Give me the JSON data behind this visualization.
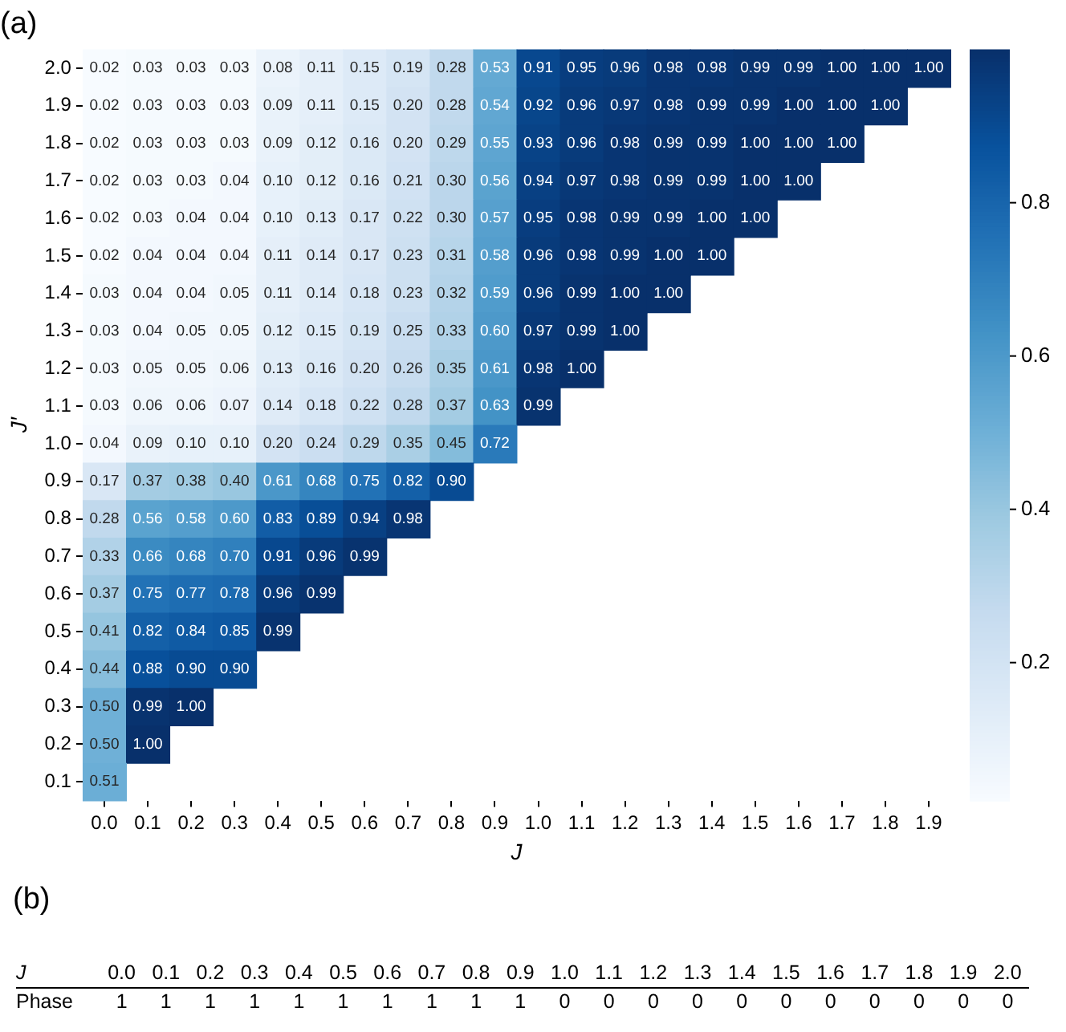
{
  "chart_data": [
    {
      "type": "heatmap",
      "title": "(a)",
      "xlabel": "J",
      "ylabel": "J′",
      "categories": [
        "0.0",
        "0.1",
        "0.2",
        "0.3",
        "0.4",
        "0.5",
        "0.6",
        "0.7",
        "0.8",
        "0.9",
        "1.0",
        "1.1",
        "1.2",
        "1.3",
        "1.4",
        "1.5",
        "1.6",
        "1.7",
        "1.8",
        "1.9"
      ],
      "y_categories": [
        "2.0",
        "1.9",
        "1.8",
        "1.7",
        "1.6",
        "1.5",
        "1.4",
        "1.3",
        "1.2",
        "1.1",
        "1.0",
        "0.9",
        "0.8",
        "0.7",
        "0.6",
        "0.5",
        "0.4",
        "0.3",
        "0.2",
        "0.1"
      ],
      "cells": [
        [
          0.02,
          0.03,
          0.03,
          0.03,
          0.08,
          0.11,
          0.15,
          0.19,
          0.28,
          0.53,
          0.91,
          0.95,
          0.96,
          0.98,
          0.98,
          0.99,
          0.99,
          1.0,
          1.0,
          1.0
        ],
        [
          0.02,
          0.03,
          0.03,
          0.03,
          0.09,
          0.11,
          0.15,
          0.2,
          0.28,
          0.54,
          0.92,
          0.96,
          0.97,
          0.98,
          0.99,
          0.99,
          1.0,
          1.0,
          1.0,
          null
        ],
        [
          0.02,
          0.03,
          0.03,
          0.03,
          0.09,
          0.12,
          0.16,
          0.2,
          0.29,
          0.55,
          0.93,
          0.96,
          0.98,
          0.99,
          0.99,
          1.0,
          1.0,
          1.0,
          null,
          null
        ],
        [
          0.02,
          0.03,
          0.03,
          0.04,
          0.1,
          0.12,
          0.16,
          0.21,
          0.3,
          0.56,
          0.94,
          0.97,
          0.98,
          0.99,
          0.99,
          1.0,
          1.0,
          null,
          null,
          null
        ],
        [
          0.02,
          0.03,
          0.04,
          0.04,
          0.1,
          0.13,
          0.17,
          0.22,
          0.3,
          0.57,
          0.95,
          0.98,
          0.99,
          0.99,
          1.0,
          1.0,
          null,
          null,
          null,
          null
        ],
        [
          0.02,
          0.04,
          0.04,
          0.04,
          0.11,
          0.14,
          0.17,
          0.23,
          0.31,
          0.58,
          0.96,
          0.98,
          0.99,
          1.0,
          1.0,
          null,
          null,
          null,
          null,
          null
        ],
        [
          0.03,
          0.04,
          0.04,
          0.05,
          0.11,
          0.14,
          0.18,
          0.23,
          0.32,
          0.59,
          0.96,
          0.99,
          1.0,
          1.0,
          null,
          null,
          null,
          null,
          null,
          null
        ],
        [
          0.03,
          0.04,
          0.05,
          0.05,
          0.12,
          0.15,
          0.19,
          0.25,
          0.33,
          0.6,
          0.97,
          0.99,
          1.0,
          null,
          null,
          null,
          null,
          null,
          null,
          null
        ],
        [
          0.03,
          0.05,
          0.05,
          0.06,
          0.13,
          0.16,
          0.2,
          0.26,
          0.35,
          0.61,
          0.98,
          1.0,
          null,
          null,
          null,
          null,
          null,
          null,
          null,
          null
        ],
        [
          0.03,
          0.06,
          0.06,
          0.07,
          0.14,
          0.18,
          0.22,
          0.28,
          0.37,
          0.63,
          0.99,
          null,
          null,
          null,
          null,
          null,
          null,
          null,
          null,
          null
        ],
        [
          0.04,
          0.09,
          0.1,
          0.1,
          0.2,
          0.24,
          0.29,
          0.35,
          0.45,
          0.72,
          null,
          null,
          null,
          null,
          null,
          null,
          null,
          null,
          null,
          null
        ],
        [
          0.17,
          0.37,
          0.38,
          0.4,
          0.61,
          0.68,
          0.75,
          0.82,
          0.9,
          null,
          null,
          null,
          null,
          null,
          null,
          null,
          null,
          null,
          null,
          null
        ],
        [
          0.28,
          0.56,
          0.58,
          0.6,
          0.83,
          0.89,
          0.94,
          0.98,
          null,
          null,
          null,
          null,
          null,
          null,
          null,
          null,
          null,
          null,
          null,
          null
        ],
        [
          0.33,
          0.66,
          0.68,
          0.7,
          0.91,
          0.96,
          0.99,
          null,
          null,
          null,
          null,
          null,
          null,
          null,
          null,
          null,
          null,
          null,
          null,
          null
        ],
        [
          0.37,
          0.75,
          0.77,
          0.78,
          0.96,
          0.99,
          null,
          null,
          null,
          null,
          null,
          null,
          null,
          null,
          null,
          null,
          null,
          null,
          null,
          null
        ],
        [
          0.41,
          0.82,
          0.84,
          0.85,
          0.99,
          null,
          null,
          null,
          null,
          null,
          null,
          null,
          null,
          null,
          null,
          null,
          null,
          null,
          null,
          null
        ],
        [
          0.44,
          0.88,
          0.9,
          0.9,
          null,
          null,
          null,
          null,
          null,
          null,
          null,
          null,
          null,
          null,
          null,
          null,
          null,
          null,
          null,
          null
        ],
        [
          0.5,
          0.99,
          1.0,
          null,
          null,
          null,
          null,
          null,
          null,
          null,
          null,
          null,
          null,
          null,
          null,
          null,
          null,
          null,
          null,
          null
        ],
        [
          0.5,
          1.0,
          null,
          null,
          null,
          null,
          null,
          null,
          null,
          null,
          null,
          null,
          null,
          null,
          null,
          null,
          null,
          null,
          null,
          null
        ],
        [
          0.51,
          null,
          null,
          null,
          null,
          null,
          null,
          null,
          null,
          null,
          null,
          null,
          null,
          null,
          null,
          null,
          null,
          null,
          null,
          null
        ]
      ],
      "cell_labels": [
        [
          "0.02",
          "0.03",
          "0.03",
          "0.03",
          "0.08",
          "0.11",
          "0.15",
          "0.19",
          "0.28",
          "0.53",
          "0.91",
          "0.95",
          "0.96",
          "0.98",
          "0.98",
          "0.99",
          "0.99",
          "1.00",
          "1.00",
          "1.00"
        ],
        [
          "0.02",
          "0.03",
          "0.03",
          "0.03",
          "0.09",
          "0.11",
          "0.15",
          "0.20",
          "0.28",
          "0.54",
          "0.92",
          "0.96",
          "0.97",
          "0.98",
          "0.99",
          "0.99",
          "1.00",
          "1.00",
          "1.00",
          null
        ],
        [
          "0.02",
          "0.03",
          "0.03",
          "0.03",
          "0.09",
          "0.12",
          "0.16",
          "0.20",
          "0.29",
          "0.55",
          "0.93",
          "0.96",
          "0.98",
          "0.99",
          "0.99",
          "1.00",
          "1.00",
          "1.00",
          null,
          null
        ],
        [
          "0.02",
          "0.03",
          "0.03",
          "0.04",
          "0.10",
          "0.12",
          "0.16",
          "0.21",
          "0.30",
          "0.56",
          "0.94",
          "0.97",
          "0.98",
          "0.99",
          "0.99",
          "1.00",
          "1.00",
          null,
          null,
          null
        ],
        [
          "0.02",
          "0.03",
          "0.04",
          "0.04",
          "0.10",
          "0.13",
          "0.17",
          "0.22",
          "0.30",
          "0.57",
          "0.95",
          "0.98",
          "0.99",
          "0.99",
          "1.00",
          "1.00",
          null,
          null,
          null,
          null
        ],
        [
          "0.02",
          "0.04",
          "0.04",
          "0.04",
          "0.11",
          "0.14",
          "0.17",
          "0.23",
          "0.31",
          "0.58",
          "0.96",
          "0.98",
          "0.99",
          "1.00",
          "1.00",
          null,
          null,
          null,
          null,
          null
        ],
        [
          "0.03",
          "0.04",
          "0.04",
          "0.05",
          "0.11",
          "0.14",
          "0.18",
          "0.23",
          "0.32",
          "0.59",
          "0.96",
          "0.99",
          "1.00",
          "1.00",
          null,
          null,
          null,
          null,
          null,
          null
        ],
        [
          "0.03",
          "0.04",
          "0.05",
          "0.05",
          "0.12",
          "0.15",
          "0.19",
          "0.25",
          "0.33",
          "0.60",
          "0.97",
          "0.99",
          "1.00",
          null,
          null,
          null,
          null,
          null,
          null,
          null
        ],
        [
          "0.03",
          "0.05",
          "0.05",
          "0.06",
          "0.13",
          "0.16",
          "0.20",
          "0.26",
          "0.35",
          "0.61",
          "0.98",
          "1.00",
          null,
          null,
          null,
          null,
          null,
          null,
          null,
          null
        ],
        [
          "0.03",
          "0.06",
          "0.06",
          "0.07",
          "0.14",
          "0.18",
          "0.22",
          "0.28",
          "0.37",
          "0.63",
          "0.99",
          null,
          null,
          null,
          null,
          null,
          null,
          null,
          null,
          null
        ],
        [
          "0.04",
          "0.09",
          "0.10",
          "0.10",
          "0.20",
          "0.24",
          "0.29",
          "0.35",
          "0.45",
          "0.72",
          null,
          null,
          null,
          null,
          null,
          null,
          null,
          null,
          null,
          null
        ],
        [
          "0.17",
          "0.37",
          "0.38",
          "0.40",
          "0.61",
          "0.68",
          "0.75",
          "0.82",
          "0.90",
          null,
          null,
          null,
          null,
          null,
          null,
          null,
          null,
          null,
          null,
          null
        ],
        [
          "0.28",
          "0.56",
          "0.58",
          "0.60",
          "0.83",
          "0.89",
          "0.94",
          "0.98",
          null,
          null,
          null,
          null,
          null,
          null,
          null,
          null,
          null,
          null,
          null,
          null
        ],
        [
          "0.33",
          "0.66",
          "0.68",
          "0.70",
          "0.91",
          "0.96",
          "0.99",
          null,
          null,
          null,
          null,
          null,
          null,
          null,
          null,
          null,
          null,
          null,
          null,
          null
        ],
        [
          "0.37",
          "0.75",
          "0.77",
          "0.78",
          "0.96",
          "0.99",
          null,
          null,
          null,
          null,
          null,
          null,
          null,
          null,
          null,
          null,
          null,
          null,
          null,
          null
        ],
        [
          "0.41",
          "0.82",
          "0.84",
          "0.85",
          "0.99",
          null,
          null,
          null,
          null,
          null,
          null,
          null,
          null,
          null,
          null,
          null,
          null,
          null,
          null,
          null
        ],
        [
          "0.44",
          "0.88",
          "0.90",
          "0.90",
          null,
          null,
          null,
          null,
          null,
          null,
          null,
          null,
          null,
          null,
          null,
          null,
          null,
          null,
          null,
          null
        ],
        [
          "0.50",
          "0.99",
          "1.00",
          null,
          null,
          null,
          null,
          null,
          null,
          null,
          null,
          null,
          null,
          null,
          null,
          null,
          null,
          null,
          null,
          null
        ],
        [
          "0.50",
          "1.00",
          null,
          null,
          null,
          null,
          null,
          null,
          null,
          null,
          null,
          null,
          null,
          null,
          null,
          null,
          null,
          null,
          null,
          null
        ],
        [
          "0.51",
          null,
          null,
          null,
          null,
          null,
          null,
          null,
          null,
          null,
          null,
          null,
          null,
          null,
          null,
          null,
          null,
          null,
          null,
          null
        ]
      ],
      "clim": [
        0.02,
        1.0
      ],
      "cticks": [
        0.2,
        0.4,
        0.6,
        0.8
      ]
    },
    {
      "type": "heatmap",
      "title": "(b)",
      "xlabel": "J",
      "categories": [
        "0.0",
        "0.1",
        "0.2",
        "0.3",
        "0.4",
        "0.5",
        "0.6",
        "0.7",
        "0.8",
        "0.9",
        "1.0",
        "1.1",
        "1.2",
        "1.3",
        "1.4",
        "1.5",
        "1.6",
        "1.7",
        "1.8",
        "1.9",
        "2.0"
      ],
      "y_categories": [
        "Phase"
      ],
      "cells": [
        [
          1,
          1,
          1,
          1,
          1,
          1,
          1,
          1,
          1,
          1,
          0,
          0,
          0,
          0,
          0,
          0,
          0,
          0,
          0,
          0,
          0
        ]
      ],
      "data_labels": true
    }
  ]
}
